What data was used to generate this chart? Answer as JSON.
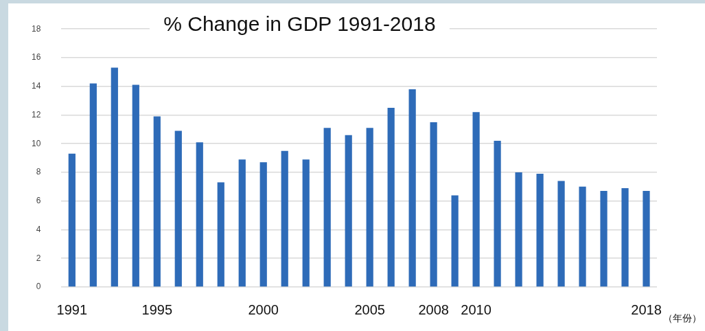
{
  "chart_data": {
    "type": "bar",
    "title": "% Change in GDP 1991-2018",
    "xlabel": "（年份）",
    "categories": [
      "1991",
      null,
      null,
      null,
      "1995",
      null,
      null,
      null,
      null,
      "2000",
      null,
      null,
      null,
      null,
      "2005",
      null,
      null,
      "2008",
      null,
      "2010",
      null,
      null,
      null,
      null,
      null,
      null,
      null,
      "2018"
    ],
    "values": [
      9.3,
      14.2,
      15.3,
      14.1,
      11.9,
      10.9,
      10.1,
      7.3,
      8.9,
      8.7,
      9.5,
      8.9,
      11.1,
      10.6,
      11.1,
      12.5,
      13.8,
      11.5,
      6.4,
      12.2,
      10.2,
      8.0,
      7.9,
      7.4,
      7.0,
      6.7,
      6.9,
      6.7
    ],
    "color": "#2e6bb8",
    "ylim": [
      0,
      18
    ],
    "yticks": [
      0,
      2,
      4,
      6,
      8,
      10,
      12,
      14,
      16,
      18
    ],
    "grid": "y",
    "legend": false
  }
}
